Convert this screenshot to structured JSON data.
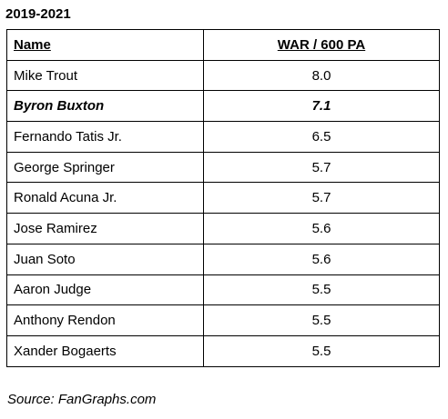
{
  "title": "2019-2021",
  "chart_data": {
    "type": "table",
    "columns": [
      "Name",
      "WAR / 600 PA"
    ],
    "rows": [
      {
        "name": "Mike Trout",
        "war": "8.0",
        "highlight": false
      },
      {
        "name": "Byron Buxton",
        "war": "7.1",
        "highlight": true
      },
      {
        "name": "Fernando Tatis Jr.",
        "war": "6.5",
        "highlight": false
      },
      {
        "name": "George Springer",
        "war": "5.7",
        "highlight": false
      },
      {
        "name": "Ronald Acuna Jr.",
        "war": "5.7",
        "highlight": false
      },
      {
        "name": "Jose Ramirez",
        "war": "5.6",
        "highlight": false
      },
      {
        "name": "Juan Soto",
        "war": "5.6",
        "highlight": false
      },
      {
        "name": "Aaron Judge",
        "war": "5.5",
        "highlight": false
      },
      {
        "name": "Anthony Rendon",
        "war": "5.5",
        "highlight": false
      },
      {
        "name": "Xander Bogaerts",
        "war": "5.5",
        "highlight": false
      }
    ]
  },
  "source": "Source: FanGraphs.com"
}
